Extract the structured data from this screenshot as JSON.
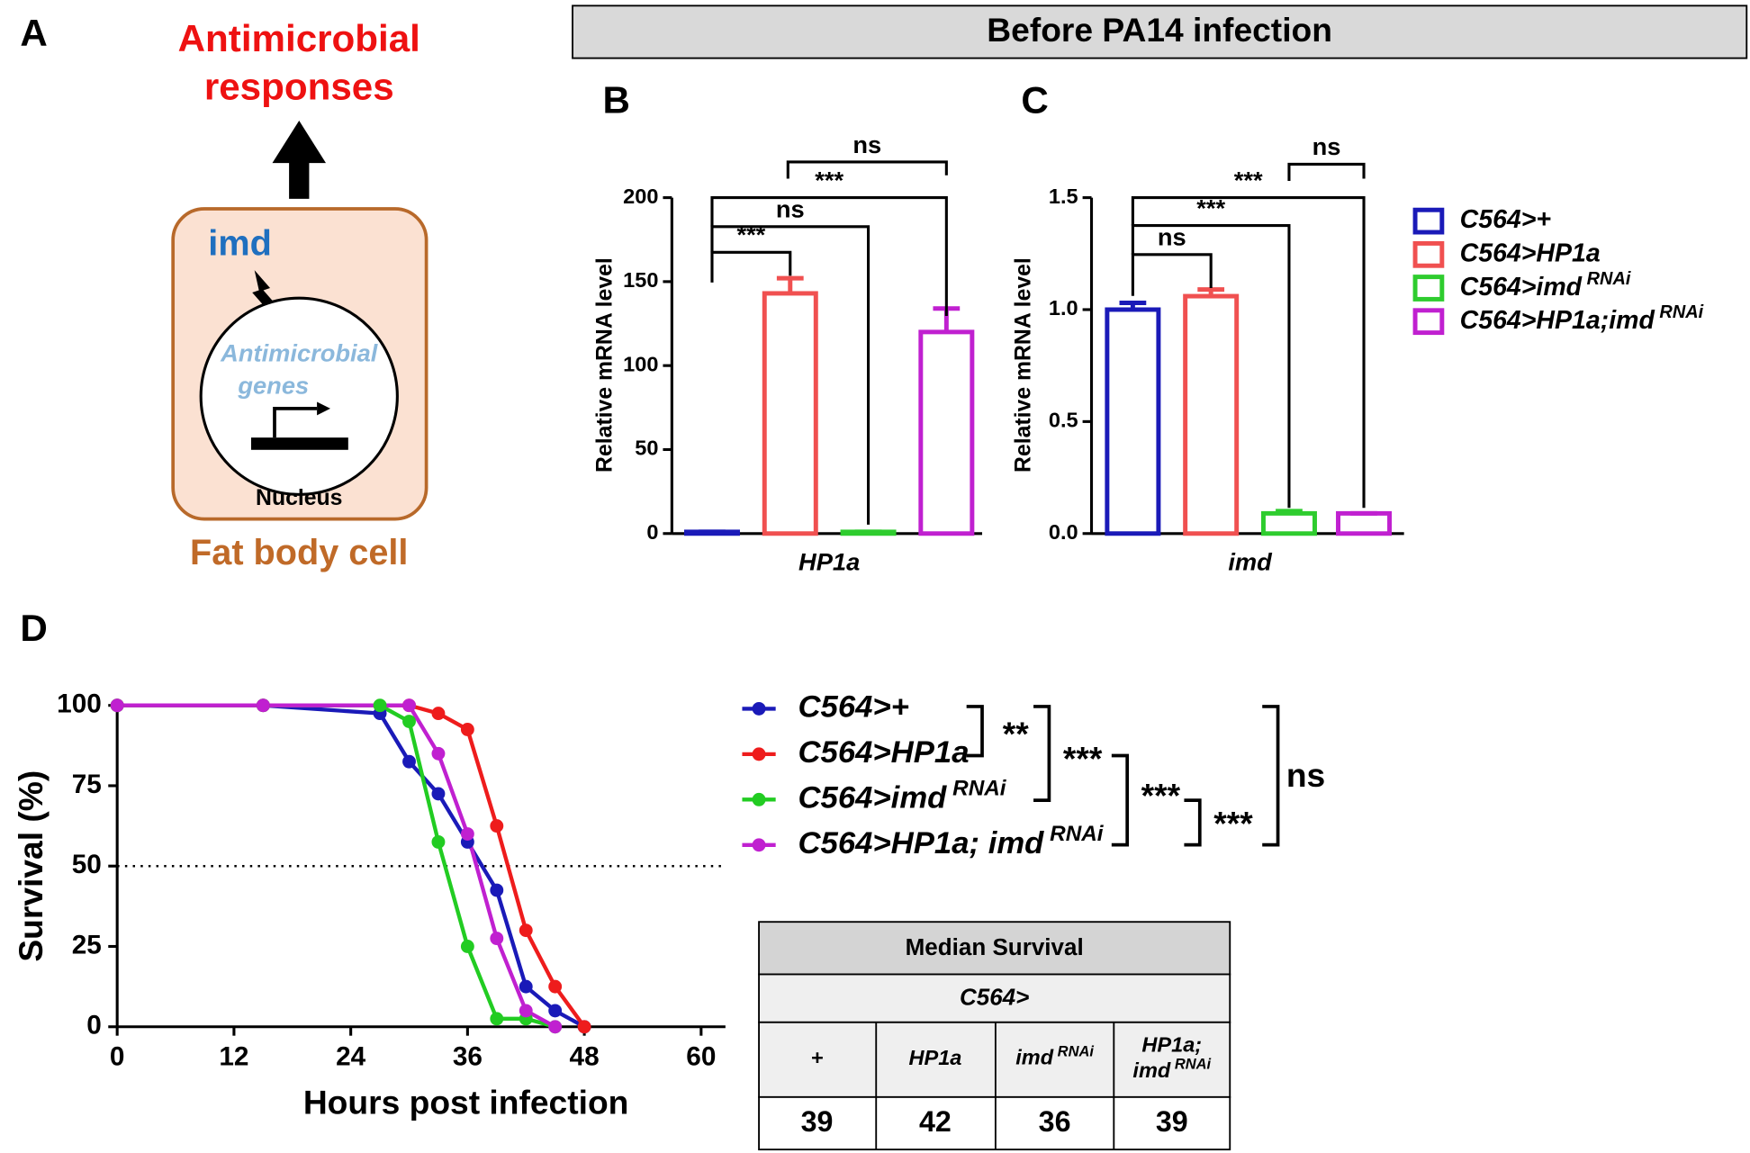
{
  "panel_labels": [
    "A",
    "B",
    "C",
    "D"
  ],
  "diagram": {
    "title": [
      "Antimicrobial",
      "responses"
    ],
    "gene": "imd",
    "genes_label": [
      "Antimicrobial",
      "genes"
    ],
    "nucleus": "Nucleus",
    "cell": "Fat body cell"
  },
  "header": "Before PA14 infection",
  "chart_data": [
    {
      "type": "bar",
      "ylabel": "Relative mRNA level",
      "categories": [
        "HP1a"
      ],
      "series": [
        {
          "color": "#1a1ab8",
          "values": [
            1
          ],
          "errors": [
            0
          ]
        },
        {
          "color": "#f05050",
          "values": [
            143
          ],
          "errors": [
            9
          ]
        },
        {
          "color": "#2ecc2e",
          "values": [
            1
          ],
          "errors": [
            0
          ]
        },
        {
          "color": "#c020d0",
          "values": [
            120
          ],
          "errors": [
            14
          ]
        }
      ],
      "ylim": [
        0,
        200
      ],
      "yticks": [
        0,
        50,
        100,
        150,
        200
      ],
      "annotations": [
        "***",
        "ns",
        "***",
        "ns"
      ]
    },
    {
      "type": "bar",
      "ylabel": "Relative mRNA level",
      "categories": [
        "imd"
      ],
      "series": [
        {
          "name": "C564>+",
          "color": "#1a1ab8",
          "values": [
            1.0
          ],
          "errors": [
            0.03
          ]
        },
        {
          "name": "C564>HP1a",
          "color": "#f05050",
          "values": [
            1.06
          ],
          "errors": [
            0.03
          ]
        },
        {
          "name": "C564>imd RNAi",
          "color": "#2ecc2e",
          "values": [
            0.09
          ],
          "errors": [
            0.01
          ]
        },
        {
          "name": "C564>HP1a;imd RNAi",
          "color": "#c020d0",
          "values": [
            0.09
          ],
          "errors": [
            0
          ]
        }
      ],
      "ylim": [
        0,
        1.5
      ],
      "yticks": [
        {
          "value": 0,
          "label": "0.0"
        },
        0.5,
        {
          "value": 1,
          "label": "1.0"
        },
        1.5
      ],
      "annotations": [
        "ns",
        "***",
        "***",
        "ns"
      ]
    },
    {
      "type": "line",
      "xlabel": "Hours post infection",
      "ylabel": "Survival (%)",
      "xlim": [
        0,
        62.5
      ],
      "ylim": [
        0,
        100
      ],
      "xticks": [
        0,
        12,
        24,
        36,
        48,
        60
      ],
      "yticks": [
        0,
        25,
        50,
        75,
        100
      ],
      "hline": 50,
      "series": [
        {
          "name": "C564>+",
          "color": "#1a1ab8",
          "x": [
            0,
            15,
            27,
            30,
            33,
            36,
            39,
            42,
            45,
            48
          ],
          "values": [
            100,
            100,
            97.5,
            82.5,
            72.5,
            57.5,
            42.5,
            12.5,
            5,
            0
          ]
        },
        {
          "name": "C564>HP1a",
          "color": "#ee1c1c",
          "x": [
            0,
            15,
            30,
            33,
            36,
            39,
            42,
            45,
            48
          ],
          "values": [
            100,
            100,
            100,
            97.5,
            92.5,
            62.5,
            30,
            12.5,
            0
          ]
        },
        {
          "name": "C564>imd RNAi",
          "color": "#22cc22",
          "x": [
            0,
            15,
            27,
            30,
            33,
            36,
            39,
            42,
            45
          ],
          "values": [
            100,
            100,
            100,
            95,
            57.5,
            25,
            2.5,
            2.5,
            0
          ]
        },
        {
          "name": "C564>HP1a; imd RNAi",
          "color": "#c020d0",
          "x": [
            0,
            15,
            30,
            33,
            36,
            39,
            42,
            45
          ],
          "values": [
            100,
            100,
            100,
            85,
            60,
            27.5,
            5,
            0
          ]
        }
      ],
      "annotations": [
        "**",
        "***",
        "***",
        "***",
        "ns"
      ]
    }
  ],
  "table": {
    "title": "Median Survival",
    "subtitle": "C564>",
    "columns": [
      [
        "+"
      ],
      [
        "HP1a"
      ],
      [
        "imd RNAi"
      ],
      [
        "HP1a;",
        "imd RNAi"
      ]
    ],
    "values": [
      39,
      42,
      36,
      39
    ]
  }
}
